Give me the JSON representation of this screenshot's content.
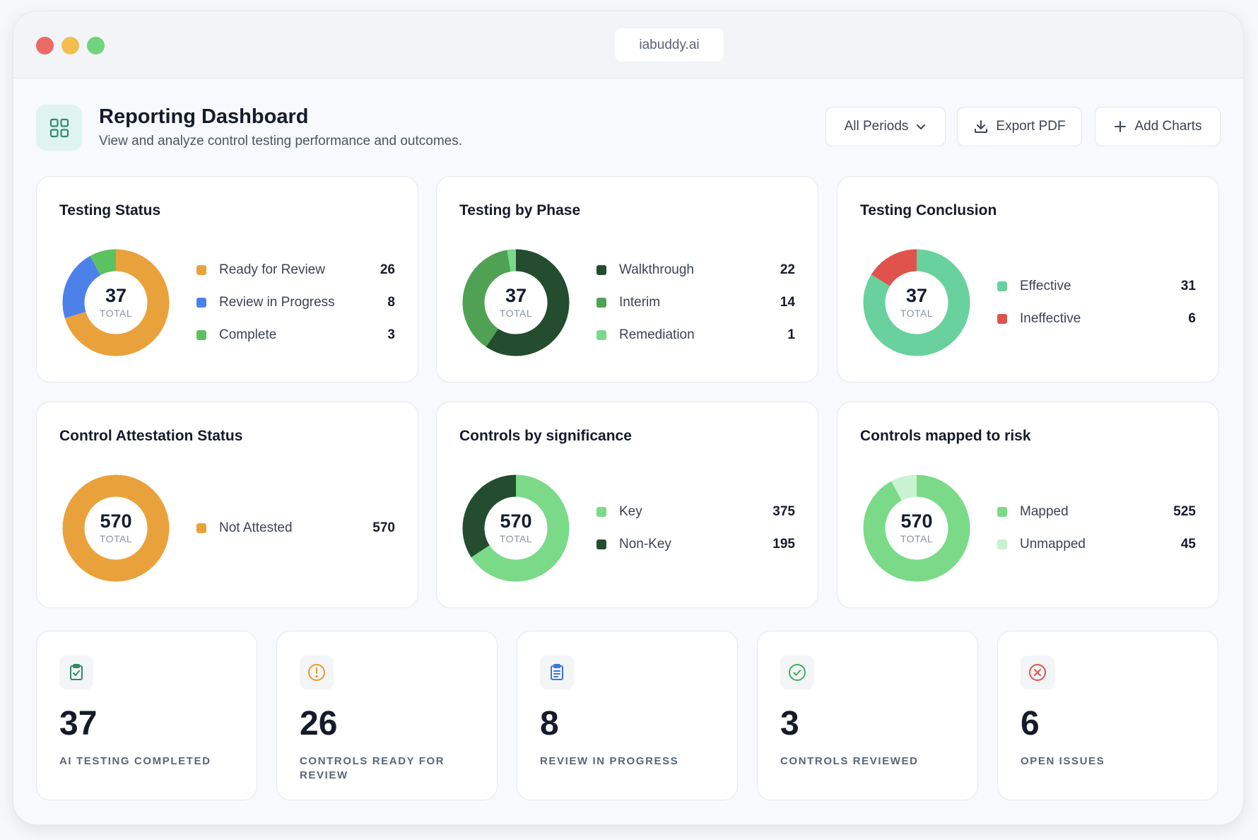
{
  "window": {
    "url": "iabuddy.ai"
  },
  "header": {
    "title": "Reporting Dashboard",
    "subtitle": "View and analyze control testing performance and outcomes.",
    "period_label": "All Periods",
    "export_label": "Export PDF",
    "add_charts_label": "Add Charts"
  },
  "total_label": "TOTAL",
  "charts": [
    {
      "title": "Testing Status",
      "total": "37",
      "items": [
        {
          "label": "Ready for Review",
          "value": 26,
          "color": "#e9a23b"
        },
        {
          "label": "Review in Progress",
          "value": 8,
          "color": "#4d81ea"
        },
        {
          "label": "Complete",
          "value": 3,
          "color": "#5cc160"
        }
      ]
    },
    {
      "title": "Testing by Phase",
      "total": "37",
      "items": [
        {
          "label": "Walkthrough",
          "value": 22,
          "color": "#234d2e"
        },
        {
          "label": "Interim",
          "value": 14,
          "color": "#4fa253"
        },
        {
          "label": "Remediation",
          "value": 1,
          "color": "#7ad98b"
        }
      ]
    },
    {
      "title": "Testing Conclusion",
      "total": "37",
      "items": [
        {
          "label": "Effective",
          "value": 31,
          "color": "#69d19d"
        },
        {
          "label": "Ineffective",
          "value": 6,
          "color": "#e0534c"
        }
      ]
    },
    {
      "title": "Control Attestation Status",
      "total": "570",
      "items": [
        {
          "label": "Not Attested",
          "value": 570,
          "color": "#e9a23b"
        }
      ]
    },
    {
      "title": "Controls by significance",
      "total": "570",
      "items": [
        {
          "label": "Key",
          "value": 375,
          "color": "#7ada88"
        },
        {
          "label": "Non-Key",
          "value": 195,
          "color": "#234d2e"
        }
      ]
    },
    {
      "title": "Controls mapped to risk",
      "total": "570",
      "items": [
        {
          "label": "Mapped",
          "value": 525,
          "color": "#7ada88"
        },
        {
          "label": "Unmapped",
          "value": 45,
          "color": "#c9f2d0"
        }
      ]
    }
  ],
  "stats": [
    {
      "value": "37",
      "label": "AI TESTING COMPLETED",
      "icon": "clipboard-check-icon",
      "color": "#2f8a5f"
    },
    {
      "value": "26",
      "label": "CONTROLS READY FOR REVIEW",
      "icon": "alert-circle-icon",
      "color": "#e39a2b"
    },
    {
      "value": "8",
      "label": "REVIEW IN PROGRESS",
      "icon": "clipboard-list-icon",
      "color": "#3d74e0"
    },
    {
      "value": "3",
      "label": "CONTROLS REVIEWED",
      "icon": "check-circle-icon",
      "color": "#3fae5e"
    },
    {
      "value": "6",
      "label": "OPEN ISSUES",
      "icon": "x-circle-icon",
      "color": "#e0534c"
    }
  ]
}
